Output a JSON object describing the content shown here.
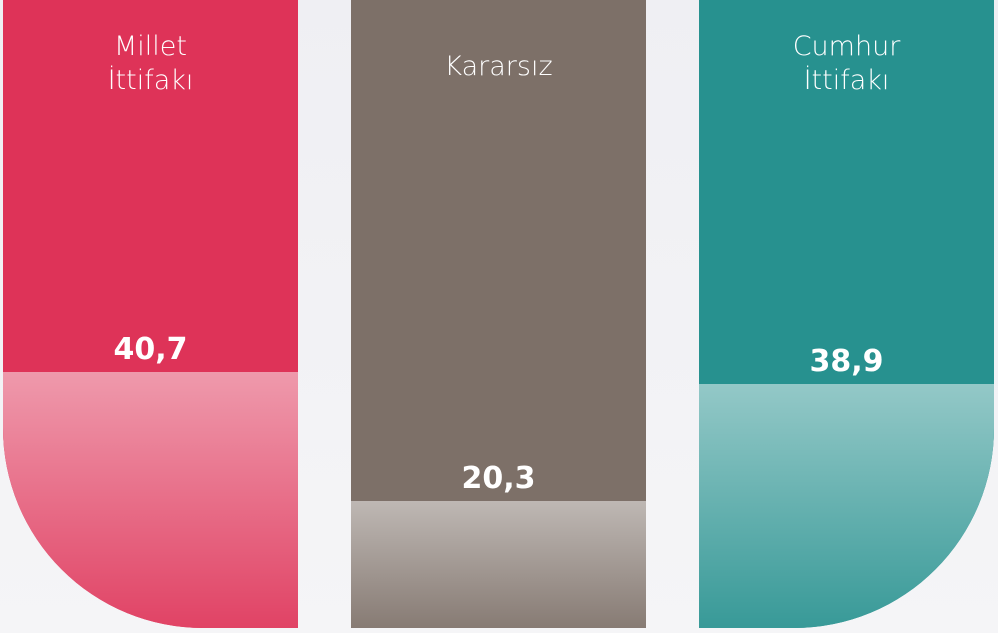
{
  "chart_data": {
    "type": "bar",
    "categories": [
      "Millet İttifakı",
      "Kararsız",
      "Cumhur İttifakı"
    ],
    "values": [
      40.7,
      20.3,
      38.9
    ],
    "value_labels": [
      "40,7",
      "20,3",
      "38,9"
    ],
    "colors": [
      "#de3358",
      "#7d7068",
      "#27918f"
    ],
    "ylim": [
      0,
      100
    ]
  }
}
